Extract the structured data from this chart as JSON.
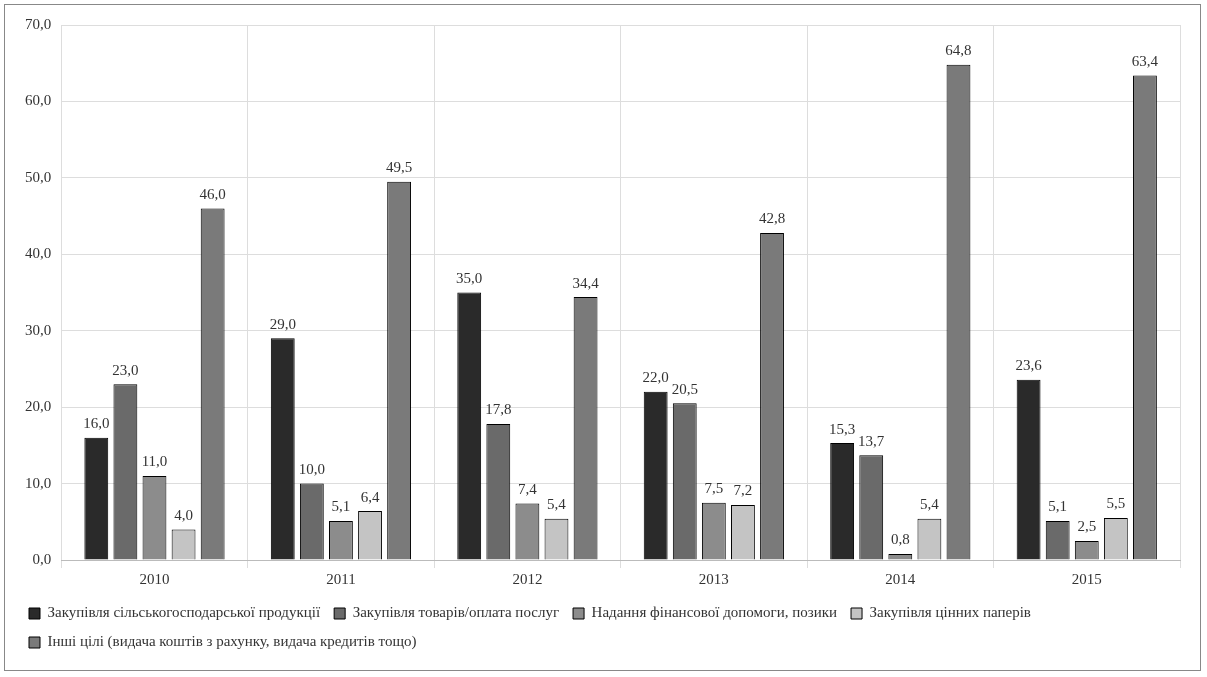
{
  "chart_data": {
    "type": "bar",
    "categories": [
      "2010",
      "2011",
      "2012",
      "2013",
      "2014",
      "2015"
    ],
    "series": [
      {
        "name": "Закупівля сільськогосподарської продукції",
        "color": "#2a2a2a",
        "values": [
          16.0,
          29.0,
          35.0,
          22.0,
          15.3,
          23.6
        ],
        "value_labels": [
          "16,0",
          "29,0",
          "35,0",
          "22,0",
          "15,3",
          "23,6"
        ]
      },
      {
        "name": "Закупівля товарів/оплата послуг",
        "color": "#6a6a6a",
        "values": [
          23.0,
          10.0,
          17.8,
          20.5,
          13.7,
          5.1
        ],
        "value_labels": [
          "23,0",
          "10,0",
          "17,8",
          "20,5",
          "13,7",
          "5,1"
        ]
      },
      {
        "name": "Надання фінансової допомоги, позики",
        "color": "#8c8c8c",
        "values": [
          11.0,
          5.1,
          7.4,
          7.5,
          0.8,
          2.5
        ],
        "value_labels": [
          "11,0",
          "5,1",
          "7,4",
          "7,5",
          "0,8",
          "2,5"
        ]
      },
      {
        "name": "Закупівля цінних паперів",
        "color": "#c4c4c4",
        "values": [
          4.0,
          6.4,
          5.4,
          7.2,
          5.4,
          5.5
        ],
        "value_labels": [
          "4,0",
          "6,4",
          "5,4",
          "7,2",
          "5,4",
          "5,5"
        ]
      },
      {
        "name": "Інші цілі (видача коштів з рахунку, видача кредитів тощо)",
        "color": "#7a7a7a",
        "values": [
          46.0,
          49.5,
          34.4,
          42.8,
          64.8,
          63.4
        ],
        "value_labels": [
          "46,0",
          "49,5",
          "34,4",
          "42,8",
          "64,8",
          "63,4"
        ]
      }
    ],
    "ylim": [
      0,
      70
    ],
    "yticks": [
      {
        "value": 0,
        "label": "0,0"
      },
      {
        "value": 10,
        "label": "10,0"
      },
      {
        "value": 20,
        "label": "20,0"
      },
      {
        "value": 30,
        "label": "30,0"
      },
      {
        "value": 40,
        "label": "40,0"
      },
      {
        "value": 50,
        "label": "50,0"
      },
      {
        "value": 60,
        "label": "60,0"
      },
      {
        "value": 70,
        "label": "70,0"
      }
    ],
    "grid": true,
    "legend": "bottom"
  }
}
